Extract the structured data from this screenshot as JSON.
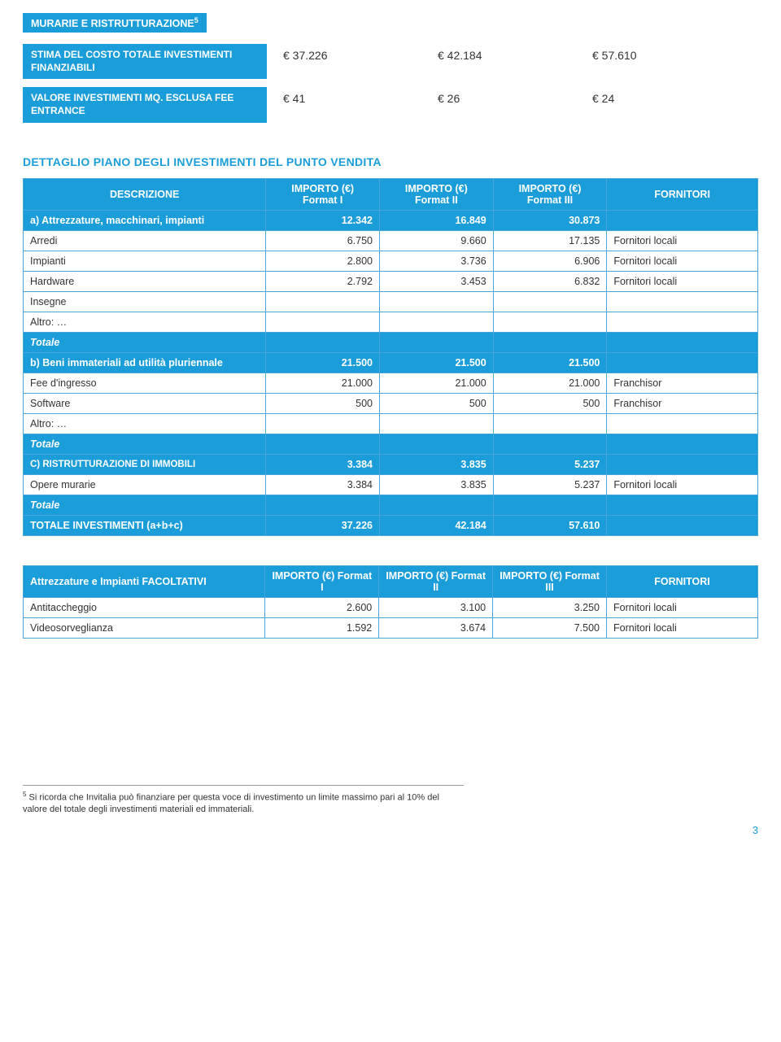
{
  "tag_line": {
    "label": "MURARIE E RISTRUTTURAZIONE",
    "sup": "5"
  },
  "stima": {
    "label": "STIMA DEL COSTO TOTALE INVESTIMENTI FINANZIABILI",
    "v1": "€ 37.226",
    "v2": "€ 42.184",
    "v3": "€ 57.610"
  },
  "valmq": {
    "label": "VALORE INVESTIMENTI MQ. ESCLUSA FEE ENTRANCE",
    "v1": "€ 41",
    "v2": "€ 26",
    "v3": "€ 24"
  },
  "section_title": "DETTAGLIO PIANO DEGLI INVESTIMENTI DEL PUNTO VENDITA",
  "cols": {
    "c0": "DESCRIZIONE",
    "c1": "IMPORTO (€) Format I",
    "c2": "IMPORTO (€) Format II",
    "c3": "IMPORTO (€) Format III",
    "c4": "FORNITORI"
  },
  "main": {
    "a_head": {
      "label": "a) Attrezzature, macchinari, impianti",
      "v1": "12.342",
      "v2": "16.849",
      "v3": "30.873"
    },
    "rows_a": [
      {
        "label": "Arredi",
        "v1": "6.750",
        "v2": "9.660",
        "v3": "17.135",
        "sup": "Fornitori locali"
      },
      {
        "label": "Impianti",
        "v1": "2.800",
        "v2": "3.736",
        "v3": "6.906",
        "sup": "Fornitori locali"
      },
      {
        "label": "Hardware",
        "v1": "2.792",
        "v2": "3.453",
        "v3": "6.832",
        "sup": "Fornitori locali"
      },
      {
        "label": "Insegne",
        "v1": "",
        "v2": "",
        "v3": "",
        "sup": ""
      },
      {
        "label": "Altro: …",
        "v1": "",
        "v2": "",
        "v3": "",
        "sup": ""
      }
    ],
    "totale_a": "Totale",
    "b_head": {
      "label": "b) Beni immateriali ad utilità pluriennale",
      "v1": "21.500",
      "v2": "21.500",
      "v3": "21.500"
    },
    "rows_b": [
      {
        "label": "Fee d'ingresso",
        "v1": "21.000",
        "v2": "21.000",
        "v3": "21.000",
        "sup": "Franchisor"
      },
      {
        "label": "Software",
        "v1": "500",
        "v2": "500",
        "v3": "500",
        "sup": "Franchisor"
      },
      {
        "label": "Altro: …",
        "v1": "",
        "v2": "",
        "v3": "",
        "sup": ""
      }
    ],
    "totale_b": "Totale",
    "c_head": {
      "label": "C) RISTRUTTURAZIONE DI IMMOBILI",
      "v1": "3.384",
      "v2": "3.835",
      "v3": "5.237"
    },
    "rows_c": [
      {
        "label": "Opere murarie",
        "v1": "3.384",
        "v2": "3.835",
        "v3": "5.237",
        "sup": "Fornitori locali"
      }
    ],
    "totale_c": "Totale",
    "grand": {
      "label": "TOTALE INVESTIMENTI (a+b+c)",
      "v1": "37.226",
      "v2": "42.184",
      "v3": "57.610"
    }
  },
  "facolt": {
    "head": {
      "label": "Attrezzature e Impianti FACOLTATIVI",
      "c1": "IMPORTO (€) Format I",
      "c2": "IMPORTO (€) Format II",
      "c3": "IMPORTO (€) Format III",
      "c4": "FORNITORI"
    },
    "rows": [
      {
        "label": "Antitaccheggio",
        "v1": "2.600",
        "v2": "3.100",
        "v3": "3.250",
        "sup": "Fornitori locali"
      },
      {
        "label": "Videosorveglianza",
        "v1": "1.592",
        "v2": "3.674",
        "v3": "7.500",
        "sup": "Fornitori locali"
      }
    ]
  },
  "footnote": {
    "sup": "5",
    "text": " Si ricorda che Invitalia può finanziare per questa voce di investimento un limite massimo pari al 10% del valore del totale degli investimenti materiali ed immateriali."
  },
  "page": "3"
}
